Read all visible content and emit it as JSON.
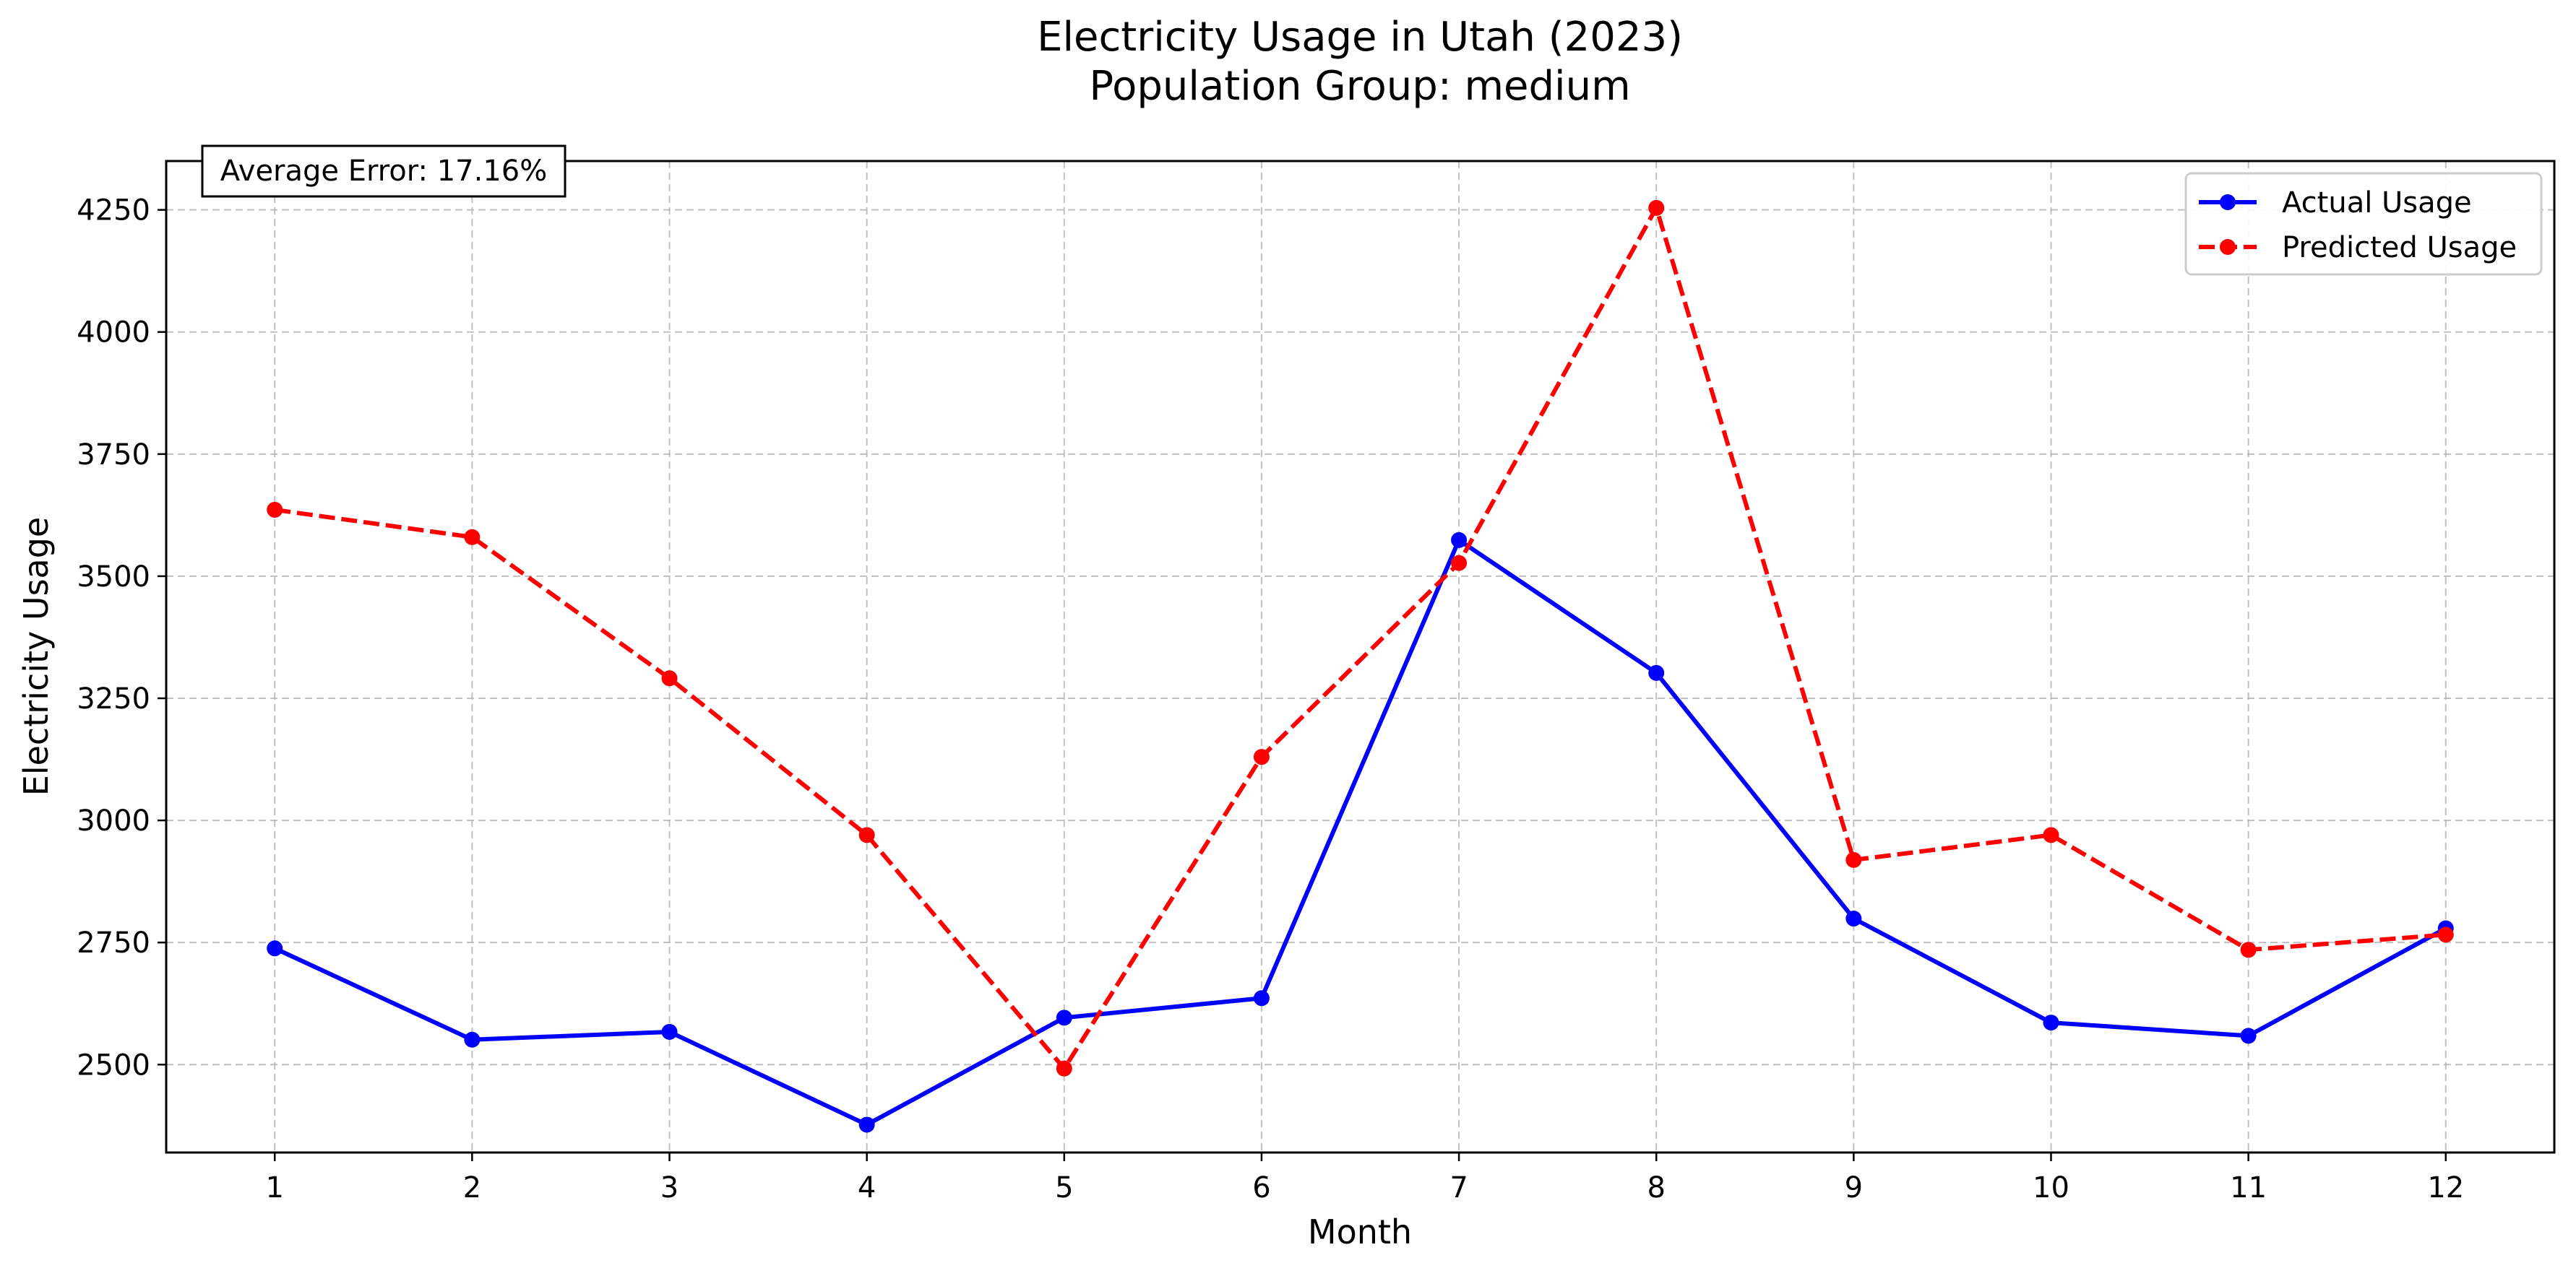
{
  "chart_data": {
    "type": "line",
    "title_line1": "Electricity Usage in Utah (2023)",
    "title_line2": "Population Group: medium",
    "xlabel": "Month",
    "ylabel": "Electricity Usage",
    "x": [
      1,
      2,
      3,
      4,
      5,
      6,
      7,
      8,
      9,
      10,
      11,
      12
    ],
    "xticks": [
      "1",
      "2",
      "3",
      "4",
      "5",
      "6",
      "7",
      "8",
      "9",
      "10",
      "11",
      "12"
    ],
    "xlim": [
      0.45,
      12.55
    ],
    "ylim": [
      2320,
      4350
    ],
    "yticks": [
      2500,
      2750,
      3000,
      3250,
      3500,
      3750,
      4000,
      4250
    ],
    "grid": true,
    "legend_position": "top-right",
    "annotation": "Average Error: 17.16%",
    "series": [
      {
        "name": "Actual Usage",
        "color": "#0000ff",
        "style": "solid",
        "values": [
          2738,
          2551,
          2567,
          2377,
          2596,
          2636,
          3574,
          3302,
          2799,
          2586,
          2559,
          2779
        ]
      },
      {
        "name": "Predicted Usage",
        "color": "#ff0000",
        "style": "dashed",
        "values": [
          3636,
          3580,
          3291,
          2970,
          2492,
          3130,
          3527,
          4254,
          2919,
          2970,
          2735,
          2766
        ]
      }
    ]
  }
}
